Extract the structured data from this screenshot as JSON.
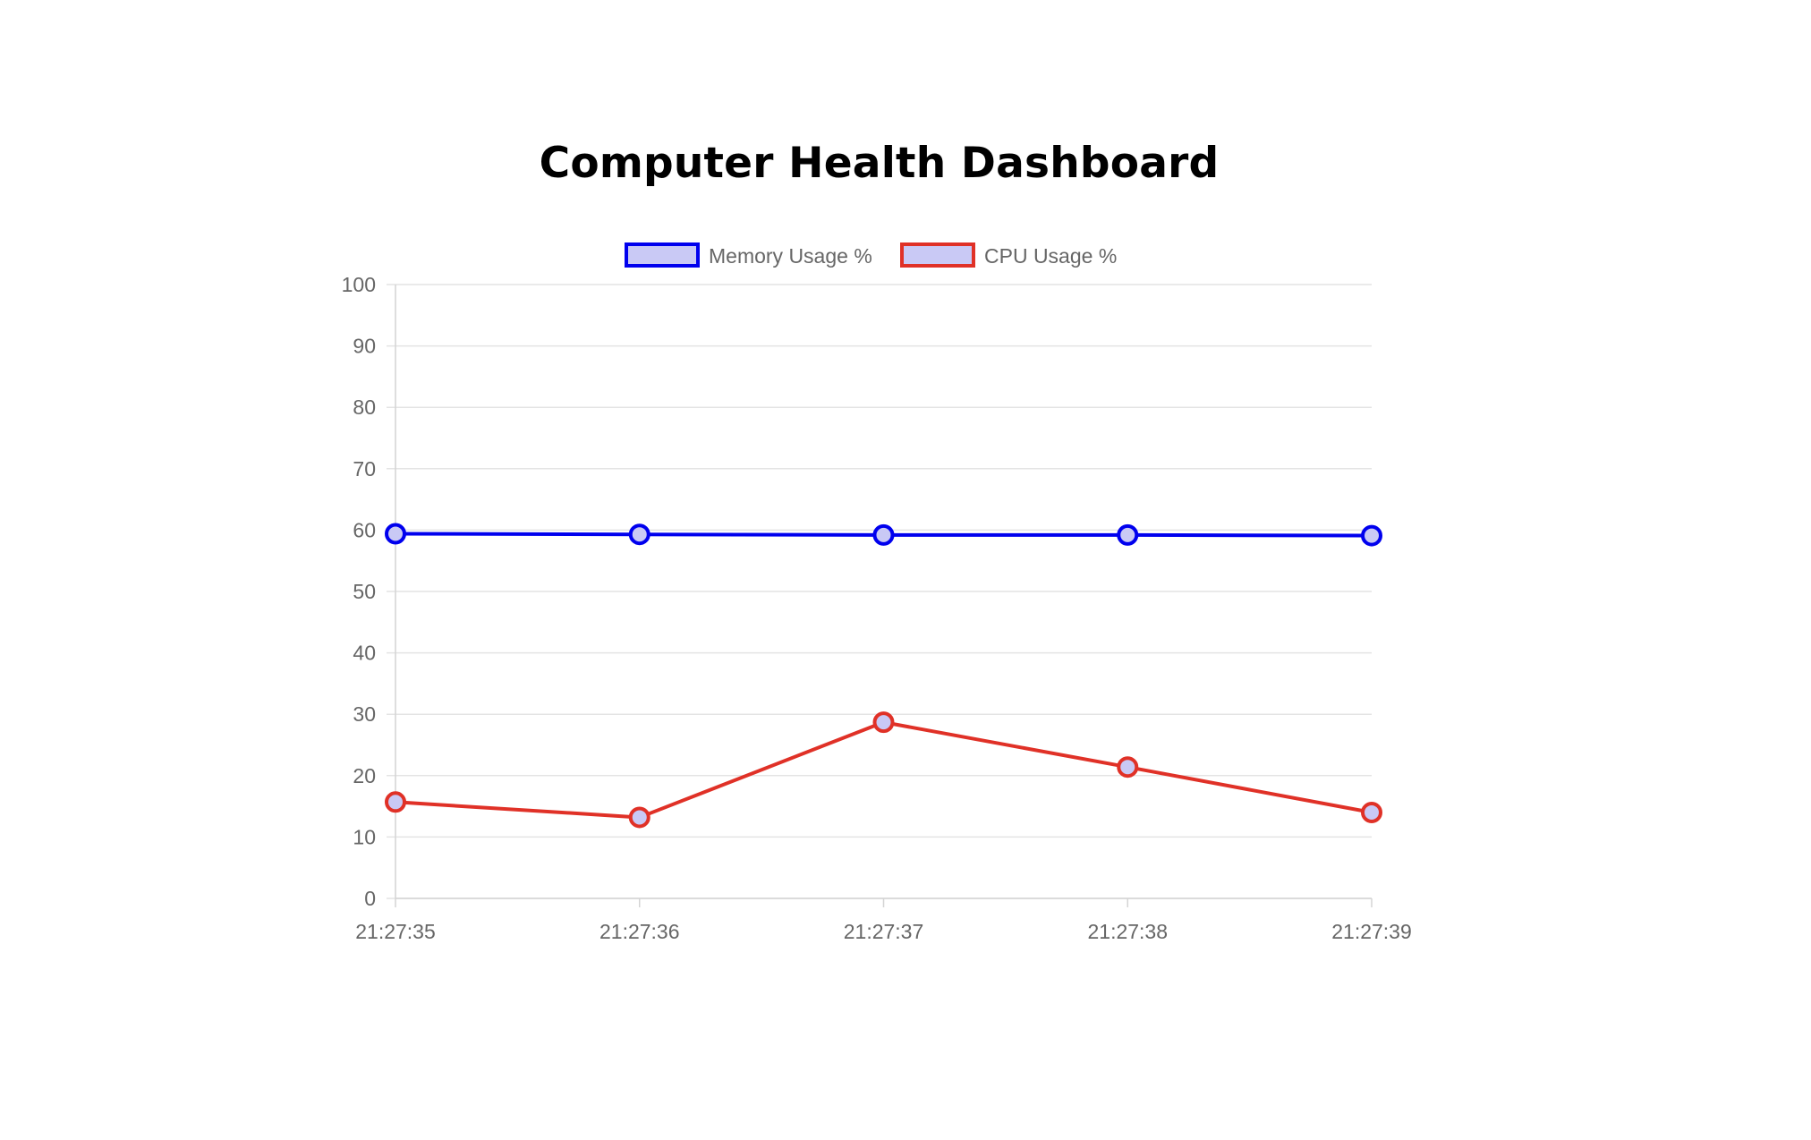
{
  "page": {
    "title": "Computer Health Dashboard"
  },
  "colors": {
    "memory": "#0000ee",
    "cpu": "#e03127",
    "point_fill": "#c9c9f5",
    "grid": "#e4e4e4",
    "tick_text": "#666666"
  },
  "chart_data": {
    "type": "line",
    "title": "",
    "xlabel": "",
    "ylabel": "",
    "categories": [
      "21:27:35",
      "21:27:36",
      "21:27:37",
      "21:27:38",
      "21:27:39"
    ],
    "series": [
      {
        "name": "Memory Usage %",
        "values": [
          59.4,
          59.3,
          59.2,
          59.2,
          59.1
        ]
      },
      {
        "name": "CPU Usage %",
        "values": [
          15.7,
          13.2,
          28.7,
          21.4,
          14.0
        ]
      }
    ],
    "ylim": [
      0,
      100
    ],
    "yticks": [
      0,
      10,
      20,
      30,
      40,
      50,
      60,
      70,
      80,
      90,
      100
    ],
    "grid": true,
    "legend_position": "top-center"
  }
}
